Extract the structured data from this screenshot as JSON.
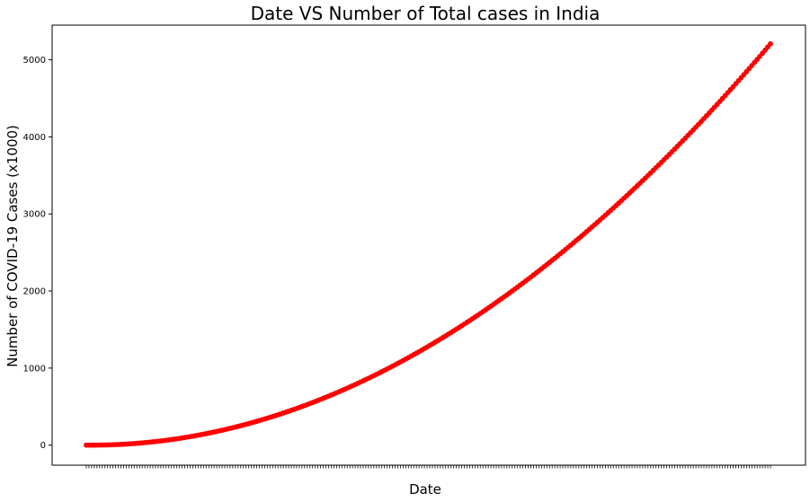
{
  "chart_data": {
    "type": "line",
    "title": "Date VS Number of Total cases in India",
    "xlabel": "Date",
    "ylabel": "Number of COVID-19 Cases (x1000)",
    "ylim": [
      -260,
      5450
    ],
    "y_ticks": [
      0,
      1000,
      2000,
      3000,
      4000,
      5000
    ],
    "grid": false,
    "legend": "none",
    "color": "#ff0000",
    "marker": "circle",
    "x_tick_labels_note": "dense overlapping date labels",
    "series": [
      {
        "values": [
          0.0,
          0.0,
          0.0,
          0.0,
          0.01,
          0.02,
          0.04,
          0.05,
          0.08,
          0.11,
          0.15,
          0.19,
          0.24,
          0.3,
          0.37,
          0.44,
          0.52,
          0.61,
          0.71,
          0.82,
          0.94,
          1.07,
          1.21,
          1.36,
          1.52,
          1.69,
          1.87,
          2.06,
          2.26,
          2.47,
          2.69,
          2.92,
          3.16,
          3.41,
          3.67,
          3.94,
          4.22,
          4.51,
          4.81,
          5.12,
          5.44,
          5.77,
          6.11,
          6.46,
          6.82,
          7.19,
          7.57,
          7.96,
          8.36,
          8.77,
          9.19,
          9.62,
          10.06,
          10.51,
          10.97,
          11.44,
          11.92,
          12.41,
          12.91,
          13.42,
          13.94,
          14.47,
          15.01,
          15.56,
          16.12,
          16.69,
          17.27,
          17.86,
          18.46,
          19.07,
          19.69,
          20.32,
          20.96,
          21.61,
          22.27,
          22.94,
          23.62,
          24.31,
          25.01,
          25.72,
          26.44,
          27.17,
          27.91,
          28.66,
          29.42,
          30.19,
          30.97,
          31.76,
          32.56,
          33.37,
          34.19,
          35.02,
          35.86,
          36.71,
          37.57,
          38.44,
          39.32,
          40.21,
          41.11,
          42.02,
          42.94,
          43.87,
          44.81,
          45.76,
          46.72,
          47.69,
          48.67,
          49.66,
          50.66,
          51.67,
          52.69,
          53.72,
          54.76,
          55.81,
          56.87,
          57.94,
          59.02,
          60.11,
          61.21,
          62.32,
          63.44,
          64.57,
          65.71,
          66.86,
          68.02,
          69.19,
          70.37,
          71.56,
          72.76,
          73.97,
          75.19,
          76.42,
          77.66,
          78.91,
          80.17,
          81.44,
          82.72,
          84.01,
          85.31,
          86.62,
          87.94,
          89.27,
          90.61,
          91.96,
          93.32,
          94.69,
          96.07,
          97.46,
          98.86,
          100.27,
          101.69,
          103.12,
          104.56,
          106.01,
          107.47,
          108.94,
          110.42,
          111.91,
          113.41,
          114.92,
          116.44,
          117.97,
          119.51,
          121.06,
          122.62,
          124.19,
          125.77,
          127.36,
          128.96,
          130.57,
          132.19,
          133.82,
          135.46,
          137.11,
          138.77,
          140.44,
          142.12,
          143.81,
          145.51,
          147.22,
          148.94,
          150.67,
          152.41,
          154.16,
          155.92,
          157.69,
          159.47,
          161.26,
          163.06,
          164.87,
          166.69,
          168.52,
          170.36,
          172.21,
          174.07,
          175.94,
          177.82,
          179.71,
          181.61,
          183.52,
          185.44,
          187.37,
          189.31,
          191.26,
          193.22,
          195.19,
          197.17,
          199.16,
          201.16,
          203.17,
          205.19,
          207.22,
          209.26,
          211.31,
          213.37,
          215.44,
          217.52,
          219.61,
          221.71,
          223.82,
          225.94,
          228.07,
          230.21,
          232.36,
          234.52,
          236.69,
          238.87,
          241.06,
          243.26,
          245.47,
          247.69,
          249.92,
          252.16,
          254.41,
          256.67,
          258.94,
          261.22,
          263.51,
          265.81,
          268.12,
          270.44,
          272.77,
          275.11,
          277.46,
          279.82,
          282.19,
          284.57,
          286.96,
          289.36,
          291.77,
          294.19,
          296.62,
          299.06,
          301.51,
          303.97,
          306.44,
          308.92,
          311.41,
          313.91,
          316.42,
          318.94,
          321.47,
          324.01,
          326.56,
          329.12,
          331.69,
          334.27,
          336.86,
          339.46,
          342.07,
          344.69,
          347.32,
          349.96,
          352.61,
          355.27,
          357.94,
          360.62,
          363.31,
          366.01,
          368.72,
          371.44,
          374.17,
          376.91,
          379.66,
          382.42,
          385.19,
          387.97,
          390.76,
          393.56,
          396.37,
          399.19,
          402.02,
          404.86,
          407.71,
          410.57,
          413.44,
          416.32,
          419.21,
          422.11,
          425.02,
          427.94,
          430.87,
          433.81,
          436.76,
          439.72,
          442.69,
          445.67,
          448.66,
          451.66,
          454.67,
          457.69,
          460.72,
          463.76,
          466.81,
          469.87,
          472.94,
          476.02,
          479.11,
          482.21,
          485.32,
          488.44,
          491.57,
          494.71,
          497.86,
          501.02,
          504.19,
          507.37,
          510.56,
          513.76,
          516.97,
          520.19,
          523.42,
          526.66,
          529.91,
          533.17,
          536.44,
          539.72,
          543.01,
          546.31,
          549.62,
          552.94,
          556.27,
          559.61,
          562.96,
          566.32,
          569.69,
          573.07,
          576.46,
          579.86,
          583.27,
          586.69,
          590.12,
          593.56,
          597.01,
          600.47,
          603.94,
          607.42,
          610.91,
          614.41,
          617.92,
          621.44,
          624.97,
          628.51,
          632.06,
          635.62,
          639.19,
          642.77,
          646.36,
          649.96,
          653.57,
          657.19,
          660.82,
          664.46,
          668.11,
          671.77,
          675.44,
          679.12,
          682.81,
          686.51,
          690.22,
          693.94,
          697.67,
          701.41,
          705.16,
          708.92,
          712.69,
          716.47,
          720.26,
          724.06,
          727.87,
          731.69,
          735.52,
          739.36,
          743.21,
          747.07,
          750.94,
          754.82,
          758.71,
          762.61,
          766.52,
          770.44,
          774.37,
          778.31,
          782.26,
          786.22,
          790.19,
          794.17,
          798.16,
          802.16,
          806.17,
          810.19,
          814.22,
          818.26,
          822.31,
          826.37,
          830.44,
          834.52,
          838.61,
          842.71,
          846.82,
          850.94,
          855.07,
          859.21,
          863.36,
          867.52,
          871.69,
          875.87,
          880.06,
          884.26,
          888.47,
          892.69,
          896.92,
          901.16,
          905.41,
          909.67,
          913.94,
          918.22,
          922.51,
          926.81,
          931.12,
          935.44,
          939.77,
          944.11,
          948.46,
          952.82,
          957.19,
          961.57,
          965.96,
          970.36,
          974.77,
          979.19,
          983.62,
          988.06,
          992.51,
          996.97,
          1001.44,
          1005.92,
          1010.41,
          1014.91,
          1019.42,
          1023.94,
          1028.47,
          1033.01,
          1037.56,
          1042.12,
          1046.69,
          1051.27,
          1055.86,
          1060.46,
          1065.07,
          1069.69,
          1074.32,
          1078.96,
          1083.61,
          1088.27,
          1092.94,
          1097.62,
          1102.31,
          1107.01,
          1111.72,
          1116.44,
          1121.17,
          1125.91,
          1130.66,
          1135.42,
          1140.19,
          1144.97,
          1149.76,
          1154.56,
          1159.37,
          1164.19,
          1169.02,
          1173.86,
          1178.71,
          1183.57,
          1188.44,
          1193.32,
          1198.21,
          1203.11,
          1208.02,
          1212.94,
          1217.87,
          1222.81,
          1227.76,
          1232.72,
          1237.69,
          1242.67,
          1247.66,
          1252.66,
          1257.67,
          1262.69,
          1267.72,
          1272.76,
          1277.81,
          1282.87,
          1287.94,
          1293.02,
          1298.11,
          1303.21,
          1308.32,
          1313.44,
          1318.57,
          1323.71,
          1328.86,
          1334.02,
          1339.19,
          1344.37,
          1349.56,
          1354.76,
          1359.97,
          1365.19,
          1370.42,
          1375.66,
          1380.91,
          1386.17,
          1391.44,
          1396.72,
          1402.01,
          1407.31,
          1412.62,
          1417.94,
          1423.27,
          1428.61,
          1433.96,
          1439.32,
          1444.69,
          1450.07,
          1455.46,
          1460.86,
          1466.27,
          1471.69,
          1477.12,
          1482.56,
          1488.01,
          1493.47,
          1498.94,
          1504.42,
          1509.91,
          1515.41,
          1520.92,
          1526.44,
          1531.97,
          1537.51,
          1543.06,
          1548.62,
          1554.19,
          1559.77,
          1565.36,
          1570.96,
          1576.57,
          1582.19,
          1587.82,
          1593.46,
          1599.11,
          1604.77,
          1610.44,
          1616.12,
          1621.81,
          1627.51,
          1633.22,
          1638.94,
          1644.67,
          1650.41,
          1656.16,
          1661.92,
          1667.69,
          1673.47,
          1679.26,
          1685.06,
          1690.87,
          1696.69,
          1702.52,
          1708.36,
          1714.21,
          1720.07,
          1725.94,
          1731.82,
          1737.71,
          1743.61,
          1749.52,
          1755.44,
          1761.37,
          1767.31,
          1773.26,
          1779.22,
          1785.19,
          1791.17,
          1797.16,
          1803.16,
          1809.17,
          1815.19,
          1821.22,
          1827.26,
          1833.31,
          1839.37,
          1845.44,
          1851.52,
          1857.61,
          1863.71,
          1869.82,
          1875.94,
          1882.07,
          1888.21,
          1894.36,
          1900.52,
          1906.69,
          1912.87,
          1919.06,
          1925.26,
          1931.47,
          1937.69,
          1943.92,
          1950.16,
          1956.41,
          1962.67,
          1968.94,
          1975.22,
          1981.51,
          1987.81,
          1994.12,
          2000.44,
          2006.77,
          2013.11,
          2019.46,
          2025.82,
          2032.19,
          2038.57,
          2044.96,
          2051.36,
          2057.77,
          2064.19,
          2070.62,
          2077.06,
          2083.51,
          2089.97,
          2096.44,
          2102.92,
          2109.41,
          2115.91,
          2122.42,
          2128.94,
          2135.47,
          2142.01,
          2148.56,
          2155.12,
          2161.69,
          2168.27,
          2174.86,
          2181.46,
          2188.07,
          2194.69,
          2201.32,
          2207.96,
          2214.61,
          2221.27,
          2227.94,
          2234.62,
          2241.31,
          2248.01,
          2254.72,
          2261.44,
          2268.17,
          2274.91,
          2281.66,
          2288.42,
          2295.19,
          2301.97,
          2308.76,
          2315.56,
          2322.37,
          2329.19,
          2336.02,
          2342.86,
          2349.71,
          2356.57,
          2363.44,
          2370.32,
          2377.21,
          2384.11,
          2391.02,
          2397.94,
          2404.87,
          2411.81,
          2418.76,
          2425.72,
          2432.69,
          2439.67,
          2446.66,
          2453.66,
          2460.67,
          2467.69,
          2474.72,
          2481.76,
          2488.81,
          2495.87,
          2502.94,
          2510.02,
          2517.11,
          2524.21,
          2531.32,
          2538.44,
          2545.57,
          2552.71,
          2559.86,
          2567.02,
          2574.19,
          2581.37,
          2588.56,
          2595.76,
          2602.97,
          2610.19,
          2617.42,
          2624.66,
          2631.91,
          2639.17,
          2646.44,
          2653.72,
          2661.01,
          2668.31,
          2675.62,
          2682.94,
          2690.27,
          2697.61,
          2704.96,
          2712.32,
          2719.69,
          2727.07,
          2734.46,
          2741.86,
          2749.27,
          2756.69,
          2764.12,
          2771.56,
          2779.01,
          2786.47,
          2793.94,
          2801.42,
          2808.91,
          2816.41,
          2823.92,
          2831.44,
          2838.97,
          2846.51,
          2854.06,
          2861.62,
          2869.19,
          2876.77,
          2884.36,
          2891.96,
          2899.57,
          2907.19,
          2914.82,
          2922.46,
          2930.11,
          2937.77,
          2945.44,
          2953.12,
          2960.81,
          2968.51,
          2976.22,
          2983.94,
          2991.67,
          2999.41,
          3007.16,
          3014.92,
          3022.69,
          3030.47,
          3038.26,
          3046.06,
          3053.87,
          3061.69,
          3069.52,
          3077.36,
          3085.21,
          3093.07,
          3100.94,
          3108.82,
          3116.71,
          3124.61,
          3132.52,
          3140.44,
          3148.37,
          3156.31,
          3164.26,
          3172.22,
          3180.19,
          3188.17,
          3196.16,
          3204.16,
          3212.17,
          3220.19,
          3228.22,
          3236.26,
          3244.31,
          3252.37,
          3260.44,
          3268.52,
          3276.61,
          3284.71,
          3292.82,
          3300.94,
          3309.07,
          3317.21,
          3325.36,
          3333.52,
          3341.69,
          3349.87,
          3358.06,
          3366.26,
          3374.47,
          3382.69,
          3390.92,
          3399.16,
          3407.41,
          3415.67,
          3423.94,
          3432.22,
          3440.51,
          3448.81,
          3457.12,
          3465.44,
          3473.77,
          3482.11,
          3490.46,
          3498.82,
          3507.19,
          3515.57,
          3523.96,
          3532.36,
          3540.77,
          3549.19,
          3557.62,
          3566.06,
          3574.51,
          3582.97,
          3591.44,
          3599.92,
          3608.41,
          3616.91,
          3625.42,
          3633.94,
          3642.47,
          3651.01,
          3659.56,
          3668.12,
          3676.69,
          3685.27,
          3693.86,
          3702.46,
          3711.07,
          3719.69,
          3728.32,
          3736.96,
          3745.61,
          3754.27,
          3762.94,
          3771.62,
          3780.31,
          3789.01,
          3797.72,
          3806.44,
          3815.17,
          3823.91,
          3832.66,
          3841.42,
          3850.19,
          3858.97,
          3867.76,
          3876.56,
          3885.37,
          3894.19,
          3903.02,
          3911.86,
          3920.71,
          3929.57,
          3938.44,
          3947.32,
          3956.21,
          3965.11,
          3974.02,
          3982.94,
          3991.87,
          4000.81,
          4009.76,
          4018.72,
          4027.69,
          4036.67,
          4045.66,
          4054.66,
          4063.67,
          4072.69,
          4081.72,
          4090.76,
          4099.81,
          4108.87,
          4117.94,
          4127.02,
          4136.11,
          4145.21,
          4154.32,
          4163.44,
          4172.57,
          4181.71,
          4190.86,
          4200.02,
          4209.19,
          4218.37,
          4227.56,
          4236.76,
          4245.97,
          4255.19,
          4264.42,
          4273.66,
          4282.91,
          4292.17,
          4301.44,
          4310.72,
          4320.01,
          4329.31,
          4338.62,
          4347.94,
          4357.27,
          4366.61,
          4375.96,
          4385.32,
          4394.69,
          4404.07,
          4413.46,
          4422.86,
          4432.27,
          4441.69,
          4451.12,
          4460.56,
          4470.01,
          4479.47,
          4488.94,
          4498.42,
          4507.91,
          4517.41,
          4526.92,
          4536.44,
          4545.97,
          4555.51,
          4565.06,
          4574.62,
          4584.19,
          4593.77,
          4603.36,
          4612.96,
          4622.57,
          4632.19,
          4641.82,
          4651.46,
          4661.11,
          4670.77,
          4680.44,
          4690.12,
          4699.81,
          4709.51,
          4719.22,
          4728.94,
          4738.67,
          4748.41,
          4758.16,
          4767.92,
          4777.69,
          4787.47,
          4797.26,
          4807.06,
          4816.87,
          4826.69,
          4836.52,
          4846.36,
          4856.21,
          4866.07,
          4875.94,
          4885.82,
          4895.71,
          4905.61,
          4915.52,
          4925.44,
          4935.37,
          4945.31,
          4955.26,
          4965.22,
          4975.19,
          4985.17,
          4995.16,
          5005.16,
          5015.17,
          5025.19,
          5035.22,
          5045.26,
          5055.31,
          5065.37,
          5075.44,
          5085.52,
          5095.61,
          5105.71,
          5115.82,
          5125.94,
          5136.07,
          5146.21,
          5156.36,
          5166.52,
          5176.69,
          5186.87,
          5197.06,
          5207.26
        ]
      }
    ]
  }
}
